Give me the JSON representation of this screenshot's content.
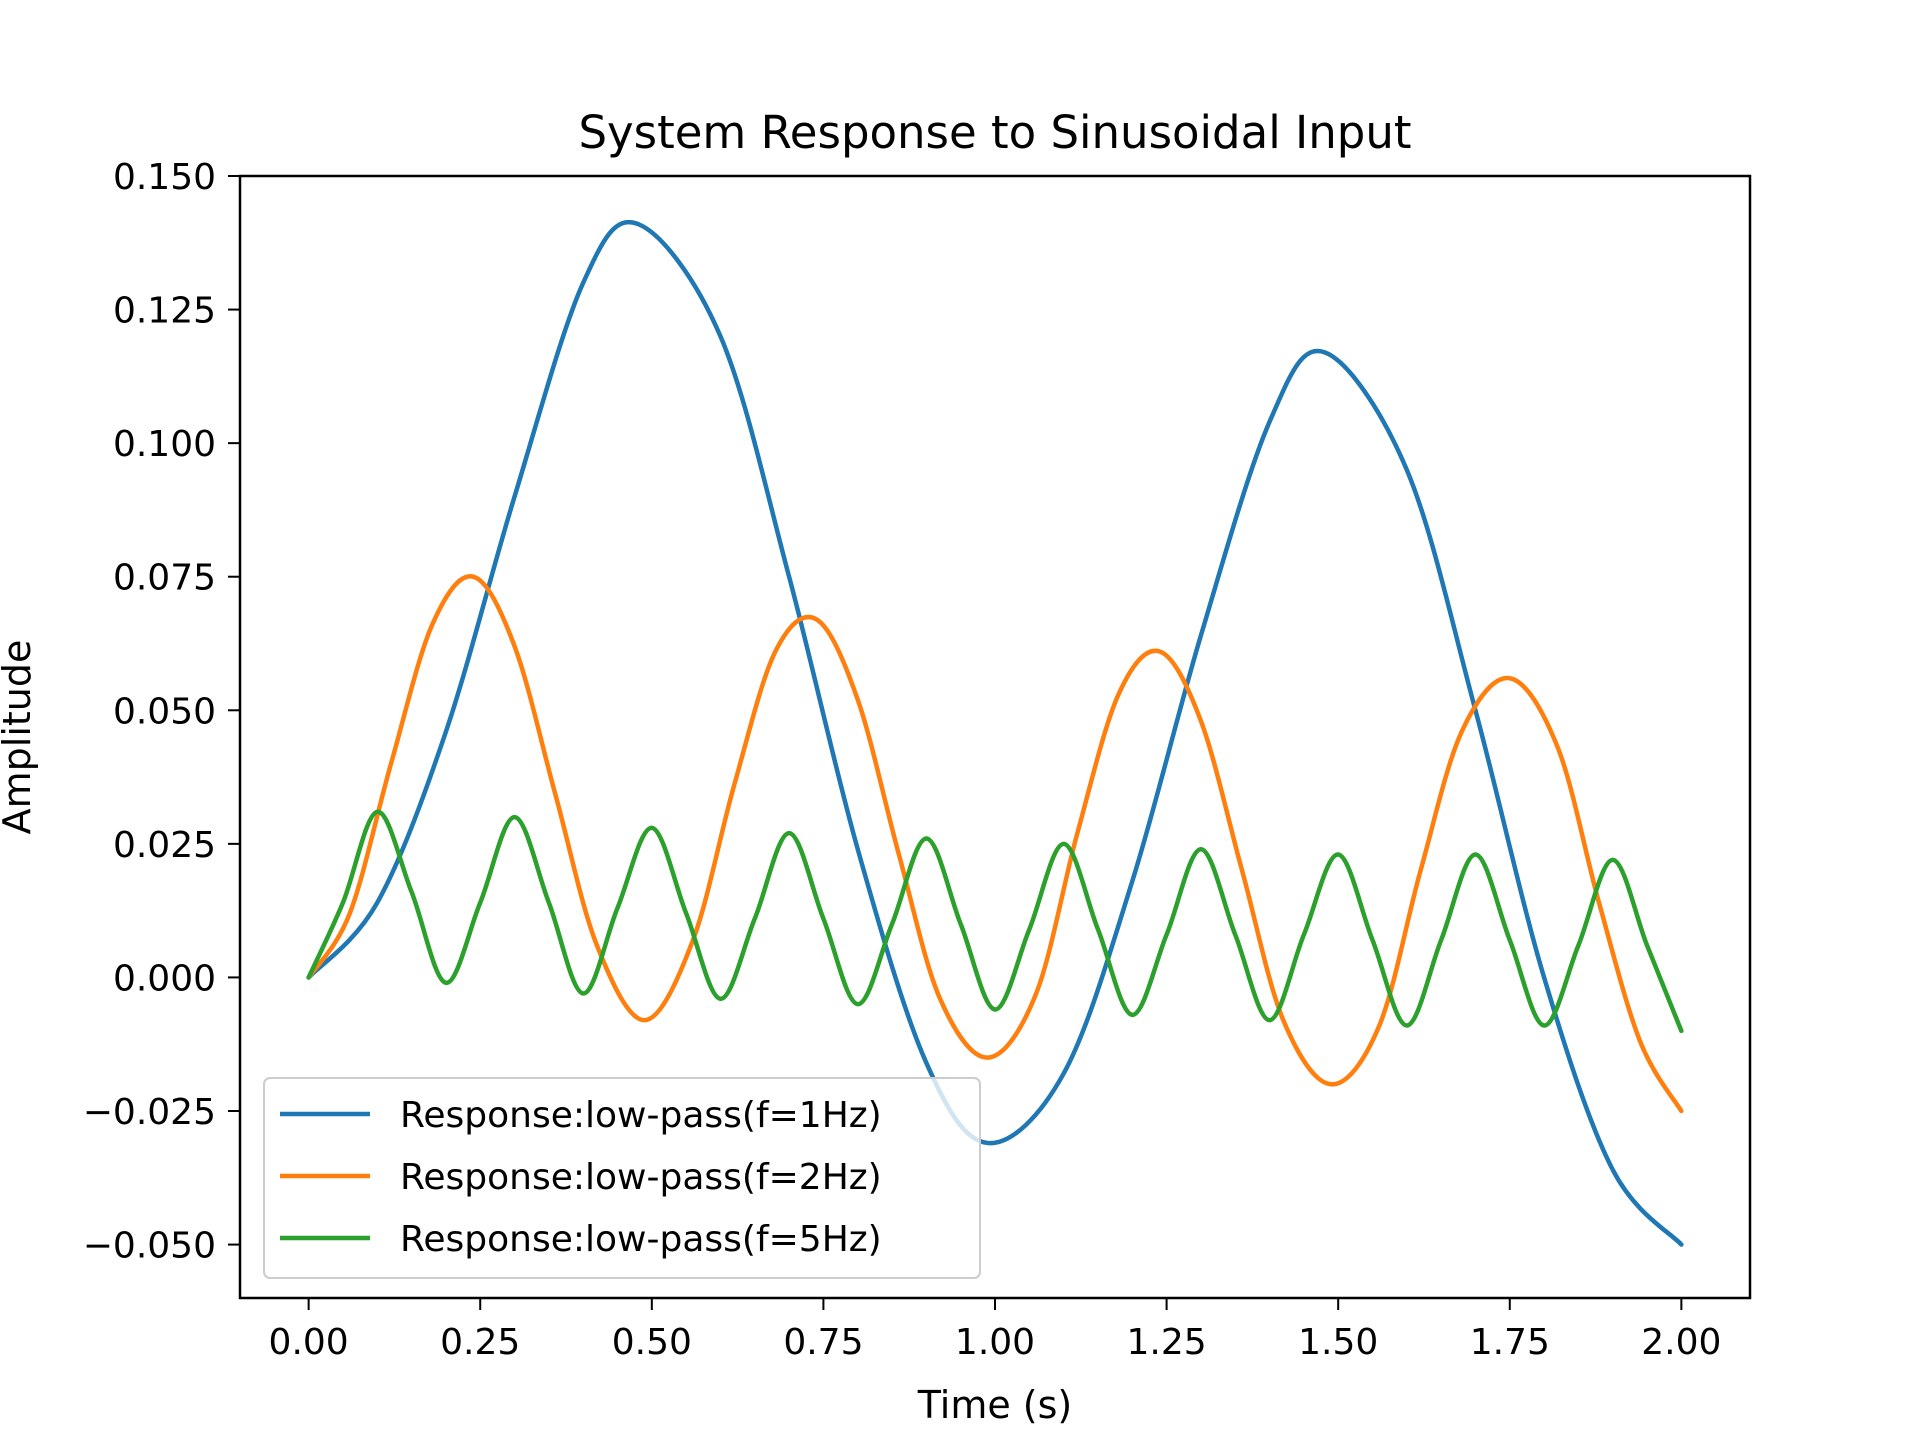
{
  "chart_data": {
    "type": "line",
    "title": "System Response to Sinusoidal Input",
    "xlabel": "Time (s)",
    "ylabel": "Amplitude",
    "xlim": [
      -0.1,
      2.1
    ],
    "ylim": [
      -0.06,
      0.15
    ],
    "xticks": [
      0.0,
      0.25,
      0.5,
      0.75,
      1.0,
      1.25,
      1.5,
      1.75,
      2.0
    ],
    "xtick_labels": [
      "0.00",
      "0.25",
      "0.50",
      "0.75",
      "1.00",
      "1.25",
      "1.50",
      "1.75",
      "2.00"
    ],
    "yticks": [
      -0.05,
      -0.025,
      0.0,
      0.025,
      0.05,
      0.075,
      0.1,
      0.125,
      0.15
    ],
    "ytick_labels": [
      "−0.050",
      "−0.025",
      "0.000",
      "0.025",
      "0.050",
      "0.075",
      "0.100",
      "0.125",
      "0.150"
    ],
    "grid": false,
    "legend_position": "lower-left",
    "series": [
      {
        "name": "Response:low-pass(f=1Hz)",
        "color": "#1f77b4",
        "x": [
          0,
          0.1,
          0.2,
          0.3,
          0.4,
          0.48,
          0.6,
          0.7,
          0.8,
          0.9,
          0.99,
          1.1,
          1.2,
          1.3,
          1.4,
          1.48,
          1.6,
          1.7,
          1.8,
          1.9,
          2.0
        ],
        "y": [
          0,
          0.014,
          0.046,
          0.09,
          0.13,
          0.141,
          0.12,
          0.075,
          0.024,
          -0.016,
          -0.031,
          -0.018,
          0.018,
          0.064,
          0.104,
          0.117,
          0.095,
          0.05,
          0.0,
          -0.036,
          -0.05
        ]
      },
      {
        "name": "Response:low-pass(f=2Hz)",
        "color": "#ff7f0e",
        "x": [
          0,
          0.06,
          0.12,
          0.18,
          0.24,
          0.3,
          0.36,
          0.42,
          0.49,
          0.56,
          0.62,
          0.68,
          0.74,
          0.8,
          0.86,
          0.92,
          0.99,
          1.06,
          1.12,
          1.18,
          1.24,
          1.3,
          1.36,
          1.42,
          1.49,
          1.56,
          1.62,
          1.68,
          1.75,
          1.82,
          1.88,
          1.94,
          2.0
        ],
        "y": [
          0,
          0.012,
          0.04,
          0.066,
          0.075,
          0.062,
          0.034,
          0.006,
          -0.008,
          0.007,
          0.036,
          0.061,
          0.067,
          0.052,
          0.023,
          -0.004,
          -0.015,
          -0.003,
          0.027,
          0.053,
          0.061,
          0.048,
          0.02,
          -0.008,
          -0.02,
          -0.009,
          0.02,
          0.046,
          0.056,
          0.043,
          0.014,
          -0.012,
          -0.025
        ]
      },
      {
        "name": "Response:low-pass(f=5Hz)",
        "color": "#2ca02c",
        "x": [
          0,
          0.05,
          0.1,
          0.15,
          0.2,
          0.25,
          0.3,
          0.35,
          0.4,
          0.45,
          0.5,
          0.55,
          0.6,
          0.65,
          0.7,
          0.75,
          0.8,
          0.85,
          0.9,
          0.95,
          1.0,
          1.05,
          1.1,
          1.15,
          1.2,
          1.25,
          1.3,
          1.35,
          1.4,
          1.45,
          1.5,
          1.55,
          1.6,
          1.65,
          1.7,
          1.75,
          1.8,
          1.85,
          1.9,
          1.95,
          2.0
        ],
        "y": [
          0,
          0.014,
          0.031,
          0.016,
          -0.001,
          0.014,
          0.03,
          0.014,
          -0.003,
          0.013,
          0.028,
          0.012,
          -0.004,
          0.011,
          0.027,
          0.011,
          -0.005,
          0.01,
          0.026,
          0.01,
          -0.006,
          0.009,
          0.025,
          0.009,
          -0.007,
          0.008,
          0.024,
          0.008,
          -0.008,
          0.008,
          0.023,
          0.007,
          -0.009,
          0.007,
          0.023,
          0.007,
          -0.009,
          0.006,
          0.022,
          0.006,
          -0.01
        ]
      }
    ]
  }
}
